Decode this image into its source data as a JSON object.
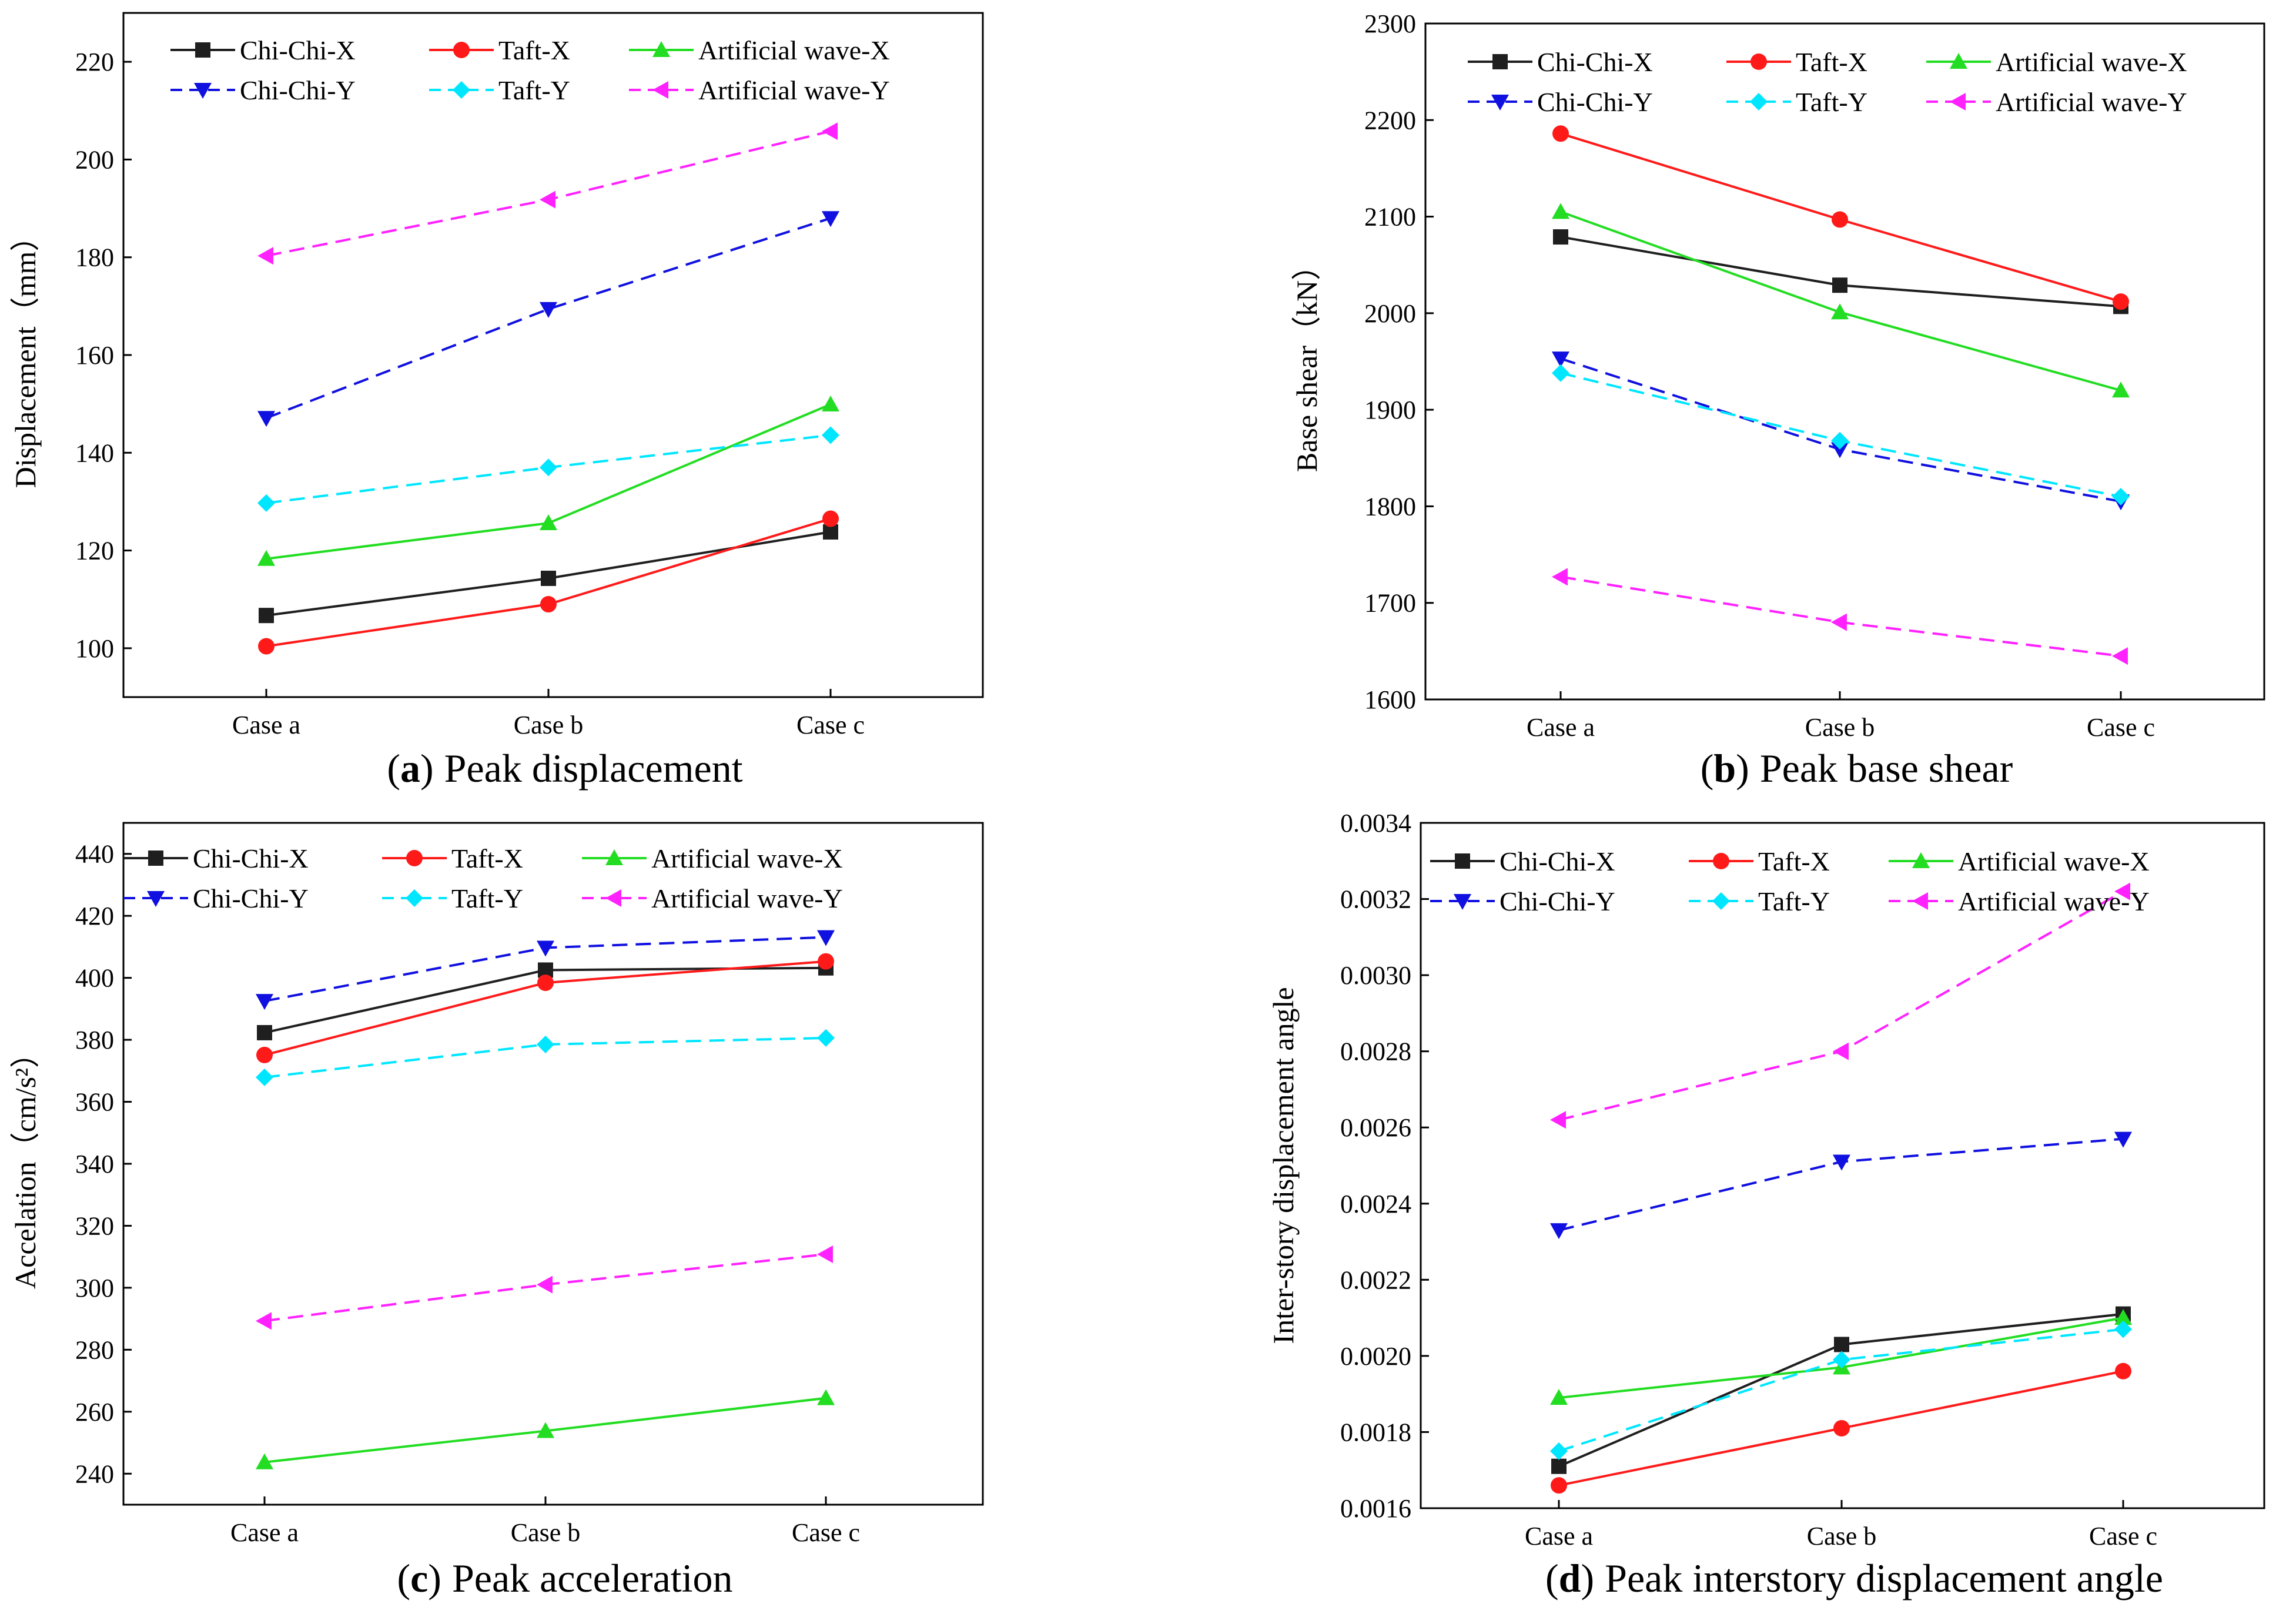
{
  "figure": {
    "series_styles": [
      {
        "key": "chichi_x",
        "color": "#1f1f1f",
        "dash": "solid",
        "marker": "square"
      },
      {
        "key": "taft_x",
        "color": "#ff1a1a",
        "dash": "solid",
        "marker": "circle"
      },
      {
        "key": "artificial_x",
        "color": "#22dd22",
        "dash": "solid",
        "marker": "triangle-up"
      },
      {
        "key": "chichi_y",
        "color": "#1010e0",
        "dash": "dashed",
        "marker": "triangle-down"
      },
      {
        "key": "taft_y",
        "color": "#00e6ff",
        "dash": "dashed",
        "marker": "diamond"
      },
      {
        "key": "artificial_y",
        "color": "#ff22ff",
        "dash": "dashed",
        "marker": "triangle-left"
      }
    ]
  },
  "chart_data": [
    {
      "id": "a",
      "type": "line",
      "caption_letter": "a",
      "caption_open": "(",
      "caption_close": ")",
      "caption_text": "Peak displacement",
      "ylabel": "Displacement（mm）",
      "categories": [
        "Case a",
        "Case b",
        "Case c"
      ],
      "ylim": [
        90,
        230
      ],
      "yticks": [
        100,
        120,
        140,
        160,
        180,
        200,
        220
      ],
      "ytick_labels": [
        "100",
        "120",
        "140",
        "160",
        "180",
        "200",
        "220"
      ],
      "series": [
        {
          "name": "Chi-Chi-X",
          "values": [
            106.7,
            114.3,
            123.8
          ]
        },
        {
          "name": "Taft-X",
          "values": [
            100.4,
            109.0,
            126.5
          ]
        },
        {
          "name": "Artificial wave-X",
          "values": [
            118.3,
            125.6,
            149.9
          ]
        },
        {
          "name": "Chi-Chi-Y",
          "values": [
            147.1,
            169.4,
            188.0
          ]
        },
        {
          "name": "Taft-Y",
          "values": [
            129.7,
            137.0,
            143.6
          ]
        },
        {
          "name": "Artificial wave-Y",
          "values": [
            180.3,
            191.8,
            205.8
          ]
        }
      ]
    },
    {
      "id": "b",
      "type": "line",
      "caption_letter": "b",
      "caption_open": "(",
      "caption_close": ")",
      "caption_text": "Peak base shear",
      "ylabel": "Base shear（kN）",
      "categories": [
        "Case a",
        "Case b",
        "Case c"
      ],
      "ylim": [
        1600,
        2300
      ],
      "yticks": [
        1600,
        1700,
        1800,
        1900,
        2000,
        2100,
        2200,
        2300
      ],
      "ytick_labels": [
        "1600",
        "1700",
        "1800",
        "1900",
        "2000",
        "2100",
        "2200",
        "2300"
      ],
      "series": [
        {
          "name": "Chi-Chi-X",
          "values": [
            2079,
            2029,
            2007
          ]
        },
        {
          "name": "Taft-X",
          "values": [
            2186,
            2097,
            2012
          ]
        },
        {
          "name": "Artificial wave-X",
          "values": [
            2105,
            2001,
            1920
          ]
        },
        {
          "name": "Chi-Chi-Y",
          "values": [
            1953,
            1859,
            1805
          ]
        },
        {
          "name": "Taft-Y",
          "values": [
            1938,
            1868,
            1810
          ]
        },
        {
          "name": "Artificial wave-Y",
          "values": [
            1727,
            1680,
            1645
          ]
        }
      ]
    },
    {
      "id": "c",
      "type": "line",
      "caption_letter": "c",
      "caption_open": "(",
      "caption_close": ")",
      "caption_text": "Peak acceleration",
      "ylabel": "Accelation（cm/s²）",
      "categories": [
        "Case a",
        "Case b",
        "Case c"
      ],
      "ylim": [
        230,
        450
      ],
      "yticks": [
        240,
        260,
        280,
        300,
        320,
        340,
        360,
        380,
        400,
        420,
        440
      ],
      "ytick_labels": [
        "240",
        "260",
        "280",
        "300",
        "320",
        "340",
        "360",
        "380",
        "400",
        "420",
        "440"
      ],
      "series": [
        {
          "name": "Chi-Chi-X",
          "values": [
            382.3,
            402.5,
            403.2
          ]
        },
        {
          "name": "Taft-X",
          "values": [
            375.1,
            398.4,
            405.3
          ]
        },
        {
          "name": "Artificial wave-X",
          "values": [
            243.7,
            253.8,
            264.4
          ]
        },
        {
          "name": "Chi-Chi-Y",
          "values": [
            392.5,
            409.7,
            413.1
          ]
        },
        {
          "name": "Taft-Y",
          "values": [
            367.9,
            378.5,
            380.6
          ]
        },
        {
          "name": "Artificial wave-Y",
          "values": [
            289.3,
            301.0,
            310.8
          ]
        }
      ]
    },
    {
      "id": "d",
      "type": "line",
      "caption_letter": "d",
      "caption_open": "(",
      "caption_close": ")",
      "caption_text": "Peak interstory displacement angle",
      "ylabel": "Inter-story displacement angle",
      "categories": [
        "Case a",
        "Case b",
        "Case c"
      ],
      "ylim": [
        0.0016,
        0.0034
      ],
      "yticks": [
        0.0016,
        0.0018,
        0.002,
        0.0022,
        0.0024,
        0.0026,
        0.0028,
        0.003,
        0.0032,
        0.0034
      ],
      "ytick_labels": [
        "0.0016",
        "0.0018",
        "0.0020",
        "0.0022",
        "0.0024",
        "0.0026",
        "0.0028",
        "0.0030",
        "0.0032",
        "0.0034"
      ],
      "series": [
        {
          "name": "Chi-Chi-X",
          "values": [
            0.00171,
            0.00203,
            0.00211
          ]
        },
        {
          "name": "Taft-X",
          "values": [
            0.00166,
            0.00181,
            0.00196
          ]
        },
        {
          "name": "Artificial wave-X",
          "values": [
            0.00189,
            0.00197,
            0.0021
          ]
        },
        {
          "name": "Chi-Chi-Y",
          "values": [
            0.00233,
            0.00251,
            0.00257
          ]
        },
        {
          "name": "Taft-Y",
          "values": [
            0.00175,
            0.00199,
            0.00207
          ]
        },
        {
          "name": "Artificial wave-Y",
          "values": [
            0.00262,
            0.0028,
            0.00322
          ]
        }
      ]
    }
  ]
}
